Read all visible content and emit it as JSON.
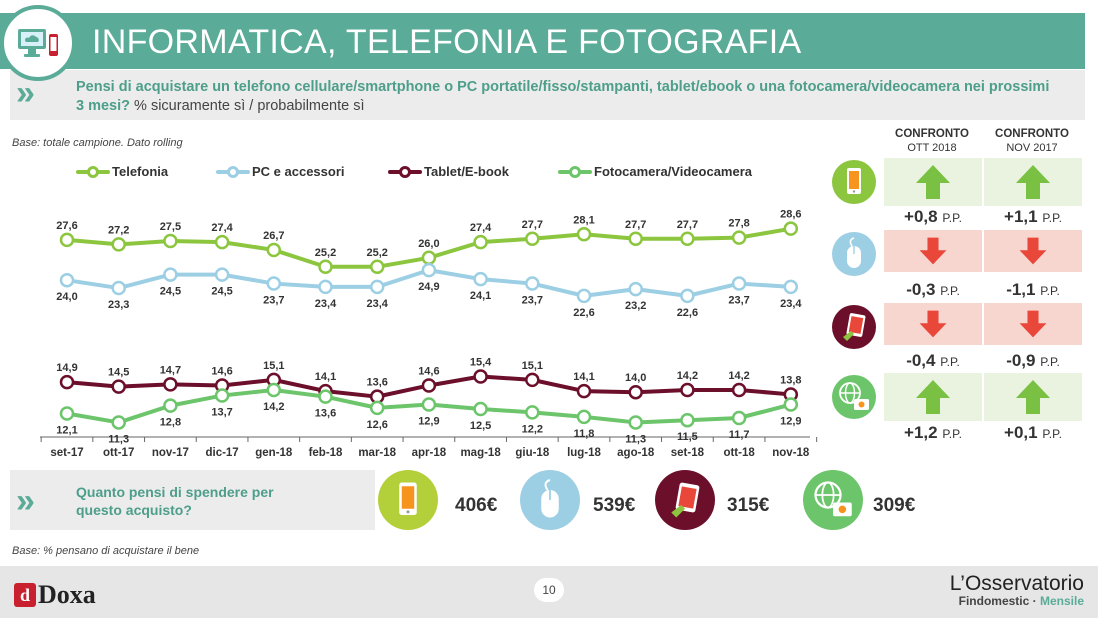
{
  "header": {
    "title": "INFORMATICA, TELEFONIA E FOTOGRAFIA",
    "question_bold": "Pensi di acquistare un telefono cellulare/smartphone o PC portatile/fisso/stampanti, tablet/ebook o una fotocamera/videocamera nei prossimi 3 mesi?",
    "question_sub": "% sicuramente sì / probabilmente sì"
  },
  "base_note_top": "Base: totale campione. Dato rolling",
  "base_note_bottom": "Base: % pensano di acquistare il bene",
  "colors": {
    "teal": "#5aab97",
    "telefonia": "#8cc63f",
    "pc": "#9ccfe4",
    "tablet": "#6b0f2b",
    "foto": "#6cc56b",
    "up_arrow": "#7ac143",
    "down_arrow": "#e8473a"
  },
  "chart_data": {
    "type": "line",
    "x": [
      "set-17",
      "ott-17",
      "nov-17",
      "dic-17",
      "gen-18",
      "feb-18",
      "mar-18",
      "apr-18",
      "mag-18",
      "giu-18",
      "lug-18",
      "ago-18",
      "set-18",
      "ott-18",
      "nov-18"
    ],
    "series": [
      {
        "name": "Telefonia",
        "values": [
          27.6,
          27.2,
          27.5,
          27.4,
          26.7,
          25.2,
          25.2,
          26.0,
          27.4,
          27.7,
          28.1,
          27.7,
          27.7,
          27.8,
          28.6
        ],
        "labels": [
          "27,6",
          "27,2",
          "27,5",
          "27,4",
          "26,7",
          "25,2",
          "25,2",
          "26,0",
          "27,4",
          "27,7",
          "28,1",
          "27,7",
          "27,7",
          "27,8",
          "28,6"
        ]
      },
      {
        "name": "PC e accessori",
        "values": [
          24.0,
          23.3,
          24.5,
          24.5,
          23.7,
          23.4,
          23.4,
          24.9,
          24.1,
          23.7,
          22.6,
          23.2,
          22.6,
          23.7,
          23.4
        ],
        "labels": [
          "24,0",
          "23,3",
          "24,5",
          "24,5",
          "23,7",
          "23,4",
          "23,4",
          "24,9",
          "24,1",
          "23,7",
          "22,6",
          "23,2",
          "22,6",
          "23,7",
          "23,4"
        ]
      },
      {
        "name": "Tablet/E-book",
        "values": [
          14.9,
          14.5,
          14.7,
          14.6,
          15.1,
          14.1,
          13.6,
          14.6,
          15.4,
          15.1,
          14.1,
          14.0,
          14.2,
          14.2,
          13.8
        ],
        "labels": [
          "14,9",
          "14,5",
          "14,7",
          "14,6",
          "15,1",
          "14,1",
          "13,6",
          "14,6",
          "15,4",
          "15,1",
          "14,1",
          "14,0",
          "14,2",
          "14,2",
          "13,8"
        ]
      },
      {
        "name": "Fotocamera/Videocamera",
        "values": [
          12.1,
          11.3,
          12.8,
          13.7,
          14.2,
          13.6,
          12.6,
          12.9,
          12.5,
          12.2,
          11.8,
          11.3,
          11.5,
          11.7,
          12.9
        ],
        "labels": [
          "12,1",
          "11,3",
          "12,8",
          "13,7",
          "14,2",
          "13,6",
          "12,6",
          "12,9",
          "12,5",
          "12,2",
          "11,8",
          "11,3",
          "11,5",
          "11,7",
          "12,9"
        ]
      }
    ]
  },
  "comparison": {
    "headers": [
      {
        "title": "CONFRONTO",
        "sub": "OTT 2018"
      },
      {
        "title": "CONFRONTO",
        "sub": "NOV 2017"
      }
    ],
    "rows": [
      {
        "icon": "smartphone-icon",
        "color": "#8cc63f",
        "values": [
          {
            "dir": "up",
            "text": "+0,8",
            "unit": "P.P."
          },
          {
            "dir": "up",
            "text": "+1,1",
            "unit": "P.P."
          }
        ]
      },
      {
        "icon": "mouse-icon",
        "color": "#9ccfe4",
        "values": [
          {
            "dir": "down",
            "text": "-0,3",
            "unit": "P.P."
          },
          {
            "dir": "down",
            "text": "-1,1",
            "unit": "P.P."
          }
        ]
      },
      {
        "icon": "tablet-icon",
        "color": "#6b0f2b",
        "values": [
          {
            "dir": "down",
            "text": "-0,4",
            "unit": "P.P."
          },
          {
            "dir": "down",
            "text": "-0,9",
            "unit": "P.P."
          }
        ]
      },
      {
        "icon": "globe-camera-icon",
        "color": "#6cc56b",
        "values": [
          {
            "dir": "up",
            "text": "+1,2",
            "unit": "P.P."
          },
          {
            "dir": "up",
            "text": "+0,1",
            "unit": "P.P."
          }
        ]
      }
    ]
  },
  "spend": {
    "question": "Quanto pensi di spendere per questo acquisto?",
    "items": [
      {
        "icon": "smartphone-icon",
        "value": "406€"
      },
      {
        "icon": "mouse-icon",
        "value": "539€"
      },
      {
        "icon": "tablet-icon",
        "value": "315€"
      },
      {
        "icon": "globe-camera-icon",
        "value": "309€"
      }
    ]
  },
  "footer": {
    "brand": "Doxa",
    "page_number": "10",
    "observatory_line1": "L’Osservatorio",
    "observatory_brand": "Findomestic ·",
    "observatory_type": "Mensile"
  }
}
